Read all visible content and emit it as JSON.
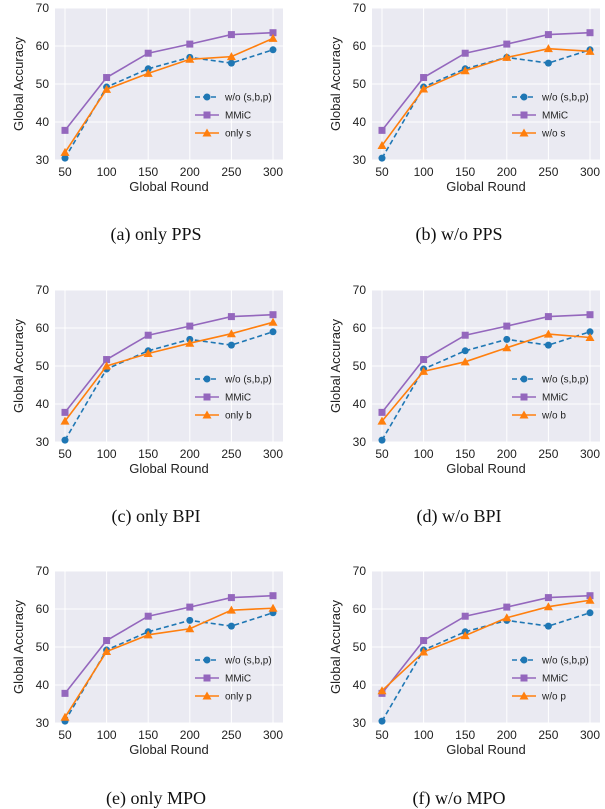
{
  "chart_data": [
    {
      "type": "line",
      "caption": "(a) only PPS",
      "x": [
        50,
        100,
        150,
        200,
        250,
        300
      ],
      "xlabel": "Global Round",
      "ylabel": "Global Accuracy",
      "ylim": [
        30,
        70
      ],
      "yticks": [
        30,
        40,
        50,
        60,
        70
      ],
      "grid": true,
      "legend_position": "lower-right",
      "series": [
        {
          "name": "w/o (s,b,p)",
          "color": "#1f77b4",
          "style": "dashed",
          "marker": "circle",
          "values": [
            30.5,
            49.2,
            54.0,
            57.0,
            55.5,
            59.0
          ]
        },
        {
          "name": "MMiC",
          "color": "#9467bd",
          "style": "solid",
          "marker": "square",
          "values": [
            37.8,
            51.7,
            58.1,
            60.5,
            63.0,
            63.5
          ]
        },
        {
          "name": "only s",
          "color": "#ff7f0e",
          "style": "solid",
          "marker": "triangle",
          "values": [
            32.0,
            48.6,
            52.8,
            56.5,
            57.2,
            62.0
          ]
        }
      ]
    },
    {
      "type": "line",
      "caption": "(b) w/o PPS",
      "x": [
        50,
        100,
        150,
        200,
        250,
        300
      ],
      "xlabel": "Global Round",
      "ylabel": "Global Accuracy",
      "ylim": [
        30,
        70
      ],
      "yticks": [
        30,
        40,
        50,
        60,
        70
      ],
      "grid": true,
      "legend_position": "lower-right",
      "series": [
        {
          "name": "w/o (s,b,p)",
          "color": "#1f77b4",
          "style": "dashed",
          "marker": "circle",
          "values": [
            30.5,
            49.2,
            54.0,
            57.0,
            55.5,
            59.0
          ]
        },
        {
          "name": "MMiC",
          "color": "#9467bd",
          "style": "solid",
          "marker": "square",
          "values": [
            37.8,
            51.7,
            58.1,
            60.5,
            63.0,
            63.5
          ]
        },
        {
          "name": "w/o s",
          "color": "#ff7f0e",
          "style": "solid",
          "marker": "triangle",
          "values": [
            33.8,
            48.7,
            53.5,
            57.0,
            59.3,
            58.6
          ]
        }
      ]
    },
    {
      "type": "line",
      "caption": "(c) only BPI",
      "x": [
        50,
        100,
        150,
        200,
        250,
        300
      ],
      "xlabel": "Global Round",
      "ylabel": "Global Accuracy",
      "ylim": [
        30,
        70
      ],
      "yticks": [
        30,
        40,
        50,
        60,
        70
      ],
      "grid": true,
      "legend_position": "lower-right",
      "series": [
        {
          "name": "w/o (s,b,p)",
          "color": "#1f77b4",
          "style": "dashed",
          "marker": "circle",
          "values": [
            30.5,
            49.2,
            54.0,
            57.0,
            55.5,
            59.0
          ]
        },
        {
          "name": "MMiC",
          "color": "#9467bd",
          "style": "solid",
          "marker": "square",
          "values": [
            37.8,
            51.7,
            58.1,
            60.5,
            63.0,
            63.5
          ]
        },
        {
          "name": "only b",
          "color": "#ff7f0e",
          "style": "solid",
          "marker": "triangle",
          "values": [
            35.5,
            50.0,
            53.3,
            56.0,
            58.5,
            61.5
          ]
        }
      ]
    },
    {
      "type": "line",
      "caption": "(d) w/o BPI",
      "x": [
        50,
        100,
        150,
        200,
        250,
        300
      ],
      "xlabel": "Global Round",
      "ylabel": "Global Accuracy",
      "ylim": [
        30,
        70
      ],
      "yticks": [
        30,
        40,
        50,
        60,
        70
      ],
      "grid": true,
      "legend_position": "lower-right",
      "series": [
        {
          "name": "w/o (s,b,p)",
          "color": "#1f77b4",
          "style": "dashed",
          "marker": "circle",
          "values": [
            30.5,
            49.2,
            54.0,
            57.0,
            55.5,
            59.0
          ]
        },
        {
          "name": "MMiC",
          "color": "#9467bd",
          "style": "solid",
          "marker": "square",
          "values": [
            37.8,
            51.7,
            58.1,
            60.5,
            63.0,
            63.5
          ]
        },
        {
          "name": "w/o b",
          "color": "#ff7f0e",
          "style": "solid",
          "marker": "triangle",
          "values": [
            35.5,
            48.6,
            51.1,
            54.8,
            58.4,
            57.5
          ]
        }
      ]
    },
    {
      "type": "line",
      "caption": "(e) only MPO",
      "x": [
        50,
        100,
        150,
        200,
        250,
        300
      ],
      "xlabel": "Global Round",
      "ylabel": "Global Accuracy",
      "ylim": [
        30,
        70
      ],
      "yticks": [
        30,
        40,
        50,
        60,
        70
      ],
      "grid": true,
      "legend_position": "lower-right",
      "series": [
        {
          "name": "w/o (s,b,p)",
          "color": "#1f77b4",
          "style": "dashed",
          "marker": "circle",
          "values": [
            30.5,
            49.2,
            54.0,
            57.0,
            55.5,
            59.0
          ]
        },
        {
          "name": "MMiC",
          "color": "#9467bd",
          "style": "solid",
          "marker": "square",
          "values": [
            37.8,
            51.7,
            58.1,
            60.5,
            63.0,
            63.5
          ]
        },
        {
          "name": "only p",
          "color": "#ff7f0e",
          "style": "solid",
          "marker": "triangle",
          "values": [
            31.5,
            48.8,
            53.2,
            54.8,
            59.7,
            60.2
          ]
        }
      ]
    },
    {
      "type": "line",
      "caption": "(f) w/o MPO",
      "x": [
        50,
        100,
        150,
        200,
        250,
        300
      ],
      "xlabel": "Global Round",
      "ylabel": "Global Accuracy",
      "ylim": [
        30,
        70
      ],
      "yticks": [
        30,
        40,
        50,
        60,
        70
      ],
      "grid": true,
      "legend_position": "lower-right",
      "series": [
        {
          "name": "w/o (s,b,p)",
          "color": "#1f77b4",
          "style": "dashed",
          "marker": "circle",
          "values": [
            30.5,
            49.2,
            54.0,
            57.0,
            55.5,
            59.0
          ]
        },
        {
          "name": "MMiC",
          "color": "#9467bd",
          "style": "solid",
          "marker": "square",
          "values": [
            37.8,
            51.7,
            58.1,
            60.5,
            63.0,
            63.5
          ]
        },
        {
          "name": "w/o p",
          "color": "#ff7f0e",
          "style": "solid",
          "marker": "triangle",
          "values": [
            38.5,
            48.7,
            53.0,
            57.7,
            60.6,
            62.3
          ]
        }
      ]
    }
  ]
}
